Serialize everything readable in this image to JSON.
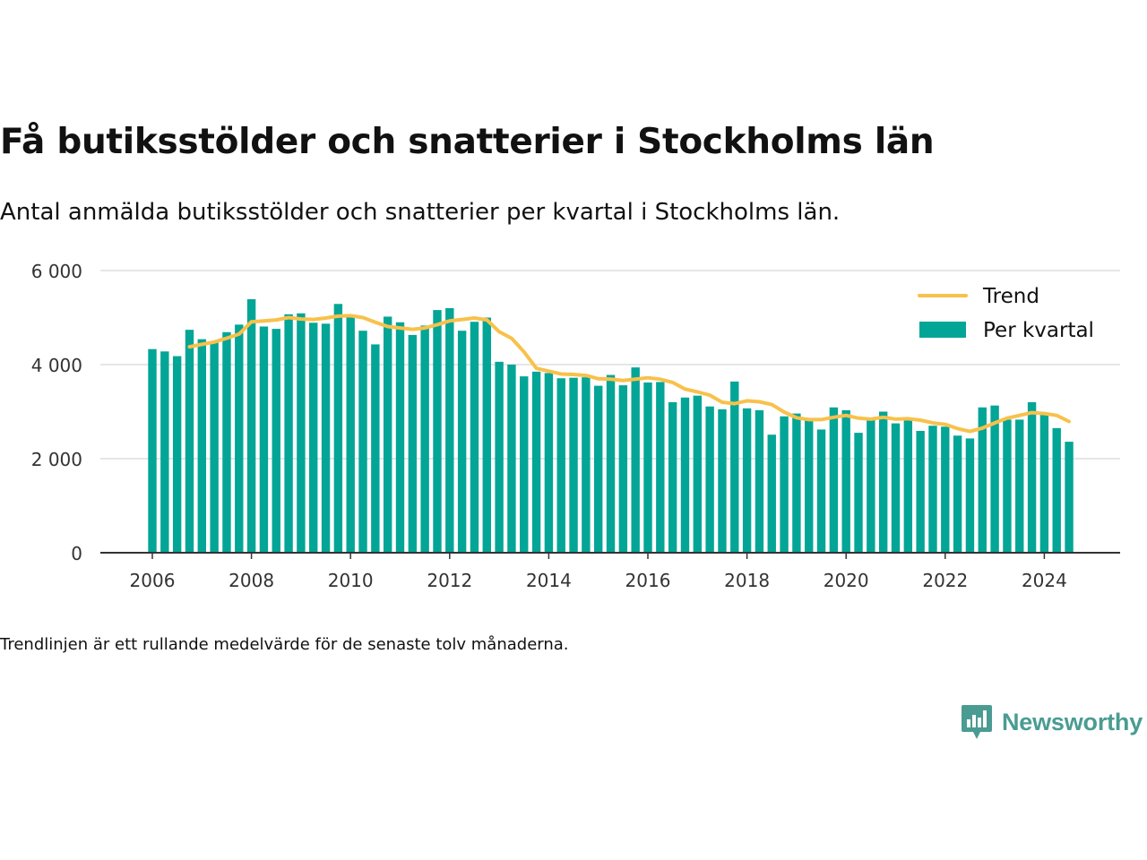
{
  "title": "Få butiksstölder och snatterier i Stockholms län",
  "subtitle": "Antal anmälda butiksstölder och snatterier per kvartal i Stockholms län.",
  "note": "Trendlinjen är ett rullande medelvärde för de senaste tolv månaderna.",
  "brand": {
    "name": "Newsworthy",
    "icon": "newsworthy-logo-icon"
  },
  "colors": {
    "bars": "#03a596",
    "trend": "#f8c14b",
    "grid": "#dddddd",
    "axis": "#333333",
    "brand": "#4a9c92"
  },
  "chart_data": {
    "type": "bar",
    "title": "",
    "xlabel": "",
    "ylabel": "",
    "ylim": [
      0,
      6000
    ],
    "y_ticks": [
      "0",
      "2 000",
      "4 000",
      "6 000"
    ],
    "x_ticks": [
      "2006",
      "2008",
      "2010",
      "2012",
      "2014",
      "2016",
      "2018",
      "2020",
      "2022",
      "2024"
    ],
    "legend_position": "top-right",
    "grid": true,
    "categories": [
      "2006 Q1",
      "2006 Q2",
      "2006 Q3",
      "2006 Q4",
      "2007 Q1",
      "2007 Q2",
      "2007 Q3",
      "2007 Q4",
      "2008 Q1",
      "2008 Q2",
      "2008 Q3",
      "2008 Q4",
      "2009 Q1",
      "2009 Q2",
      "2009 Q3",
      "2009 Q4",
      "2010 Q1",
      "2010 Q2",
      "2010 Q3",
      "2010 Q4",
      "2011 Q1",
      "2011 Q2",
      "2011 Q3",
      "2011 Q4",
      "2012 Q1",
      "2012 Q2",
      "2012 Q3",
      "2012 Q4",
      "2013 Q1",
      "2013 Q2",
      "2013 Q3",
      "2013 Q4",
      "2014 Q1",
      "2014 Q2",
      "2014 Q3",
      "2014 Q4",
      "2015 Q1",
      "2015 Q2",
      "2015 Q3",
      "2015 Q4",
      "2016 Q1",
      "2016 Q2",
      "2016 Q3",
      "2016 Q4",
      "2017 Q1",
      "2017 Q2",
      "2017 Q3",
      "2017 Q4",
      "2018 Q1",
      "2018 Q2",
      "2018 Q3",
      "2018 Q4",
      "2019 Q1",
      "2019 Q2",
      "2019 Q3",
      "2019 Q4",
      "2020 Q1",
      "2020 Q2",
      "2020 Q3",
      "2020 Q4",
      "2021 Q1",
      "2021 Q2",
      "2021 Q3",
      "2021 Q4",
      "2022 Q1",
      "2022 Q2",
      "2022 Q3",
      "2022 Q4",
      "2023 Q1",
      "2023 Q2",
      "2023 Q3",
      "2023 Q4",
      "2024 Q1",
      "2024 Q2",
      "2024 Q3"
    ],
    "series": [
      {
        "name": "Per kvartal",
        "kind": "bar",
        "values": [
          4330,
          4280,
          4180,
          4740,
          4540,
          4470,
          4690,
          4850,
          5390,
          4810,
          4760,
          5070,
          5090,
          4890,
          4870,
          5290,
          5010,
          4720,
          4430,
          5020,
          4900,
          4630,
          4830,
          5160,
          5200,
          4720,
          4910,
          5000,
          4060,
          4000,
          3750,
          3850,
          3820,
          3710,
          3720,
          3730,
          3550,
          3780,
          3560,
          3940,
          3620,
          3630,
          3200,
          3300,
          3340,
          3110,
          3050,
          3640,
          3070,
          3030,
          2510,
          2900,
          2960,
          2810,
          2620,
          3090,
          3030,
          2550,
          2840,
          3000,
          2750,
          2830,
          2590,
          2700,
          2680,
          2490,
          2430,
          3090,
          3130,
          2830,
          2830,
          3200,
          2930,
          2650,
          2360
        ]
      },
      {
        "name": "Trend",
        "kind": "line",
        "values": [
          null,
          null,
          null,
          4380,
          4430,
          4480,
          4560,
          4650,
          4910,
          4930,
          4950,
          5000,
          4970,
          4960,
          4990,
          5030,
          5040,
          5000,
          4900,
          4810,
          4780,
          4750,
          4780,
          4850,
          4930,
          4960,
          4990,
          4950,
          4700,
          4560,
          4270,
          3920,
          3860,
          3800,
          3790,
          3770,
          3700,
          3690,
          3660,
          3690,
          3720,
          3690,
          3620,
          3480,
          3420,
          3350,
          3200,
          3170,
          3230,
          3210,
          3150,
          2990,
          2870,
          2830,
          2830,
          2880,
          2920,
          2860,
          2840,
          2880,
          2840,
          2850,
          2820,
          2760,
          2730,
          2640,
          2580,
          2650,
          2760,
          2860,
          2920,
          2980,
          2960,
          2920,
          2790
        ]
      }
    ]
  }
}
